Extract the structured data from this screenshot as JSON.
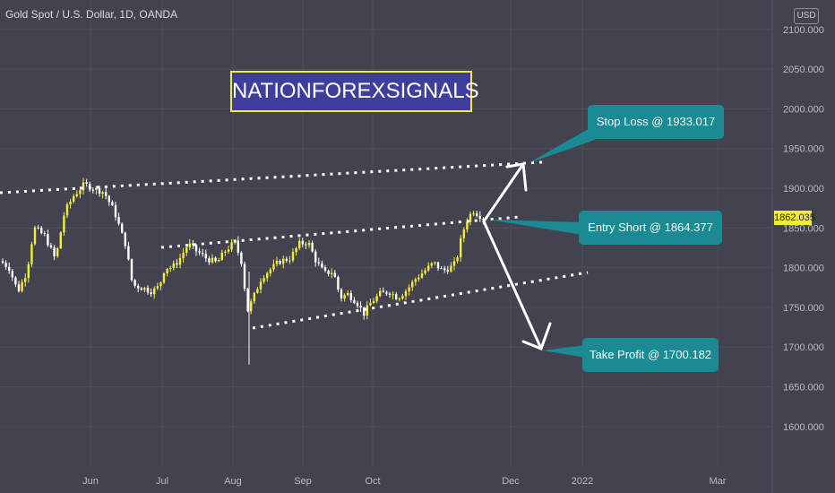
{
  "header": {
    "symbol_title": "Gold Spot / U.S. Dollar, 1D, OANDA",
    "currency": "USD"
  },
  "banner": {
    "text": "NATIONFOREXSIGNALS"
  },
  "callouts": {
    "stop_loss": "Stop Loss @ 1933.017",
    "entry_short": "Entry Short @ 1864.377",
    "take_profit": "Take Profit @ 1700.182"
  },
  "price_tag": "1862.035",
  "colors": {
    "background": "#42434e",
    "candle_up": "#f4ec3c",
    "candle_down": "#ffffff",
    "callout": "#1a8a94",
    "banner_border": "#f2e84a",
    "banner_fill": "#3f3e9c"
  },
  "chart_data": {
    "type": "candlestick",
    "title": "Gold Spot / U.S. Dollar, 1D, OANDA",
    "ylabel": "USD",
    "ylim": [
      1560,
      2120
    ],
    "y_ticks": [
      "2100.000",
      "2050.000",
      "2000.000",
      "1950.000",
      "1900.000",
      "1850.000",
      "1800.000",
      "1750.000",
      "1700.000",
      "1650.000",
      "1600.000"
    ],
    "x_ticks": [
      "Jun",
      "Jul",
      "Aug",
      "Sep",
      "Oct",
      "Dec",
      "2022",
      "Mar"
    ],
    "grid": true,
    "series": [
      {
        "close_anchors": [
          [
            1,
            1808
          ],
          [
            10,
            1800
          ],
          [
            20,
            1770
          ],
          [
            30,
            1795
          ],
          [
            38,
            1850
          ],
          [
            50,
            1840
          ],
          [
            62,
            1810
          ],
          [
            72,
            1870
          ],
          [
            82,
            1890
          ],
          [
            94,
            1905
          ],
          [
            104,
            1900
          ],
          [
            116,
            1895
          ],
          [
            128,
            1870
          ],
          [
            136,
            1842
          ],
          [
            140,
            1830
          ],
          [
            148,
            1778
          ],
          [
            158,
            1775
          ],
          [
            170,
            1770
          ],
          [
            178,
            1777
          ],
          [
            184,
            1800
          ],
          [
            192,
            1800
          ],
          [
            200,
            1810
          ],
          [
            210,
            1830
          ],
          [
            218,
            1822
          ],
          [
            230,
            1812
          ],
          [
            242,
            1806
          ],
          [
            252,
            1822
          ],
          [
            262,
            1832
          ],
          [
            270,
            1806
          ],
          [
            276,
            1745
          ],
          [
            282,
            1760
          ],
          [
            292,
            1788
          ],
          [
            304,
            1800
          ],
          [
            312,
            1808
          ],
          [
            324,
            1812
          ],
          [
            334,
            1830
          ],
          [
            344,
            1832
          ],
          [
            352,
            1810
          ],
          [
            362,
            1793
          ],
          [
            372,
            1795
          ],
          [
            380,
            1762
          ],
          [
            388,
            1767
          ],
          [
            398,
            1757
          ],
          [
            406,
            1742
          ],
          [
            414,
            1756
          ],
          [
            424,
            1767
          ],
          [
            434,
            1770
          ],
          [
            444,
            1762
          ],
          [
            454,
            1772
          ],
          [
            464,
            1786
          ],
          [
            474,
            1796
          ],
          [
            484,
            1806
          ],
          [
            494,
            1796
          ],
          [
            502,
            1800
          ],
          [
            506,
            1802
          ],
          [
            510,
            1812
          ],
          [
            516,
            1843
          ],
          [
            522,
            1862
          ],
          [
            528,
            1872
          ],
          [
            534,
            1867
          ],
          [
            540,
            1862
          ]
        ]
      }
    ],
    "trendlines": [
      {
        "name": "upper channel",
        "style": "dotted"
      },
      {
        "name": "middle channel",
        "style": "dotted"
      },
      {
        "name": "lower channel",
        "style": "dotted"
      }
    ],
    "annotations": [
      {
        "label": "Stop Loss @ 1933.017",
        "price": 1933.017
      },
      {
        "label": "Entry Short @ 1864.377",
        "price": 1864.377
      },
      {
        "label": "Take Profit @ 1700.182",
        "price": 1700.182
      }
    ],
    "last_price": 1862.035
  }
}
